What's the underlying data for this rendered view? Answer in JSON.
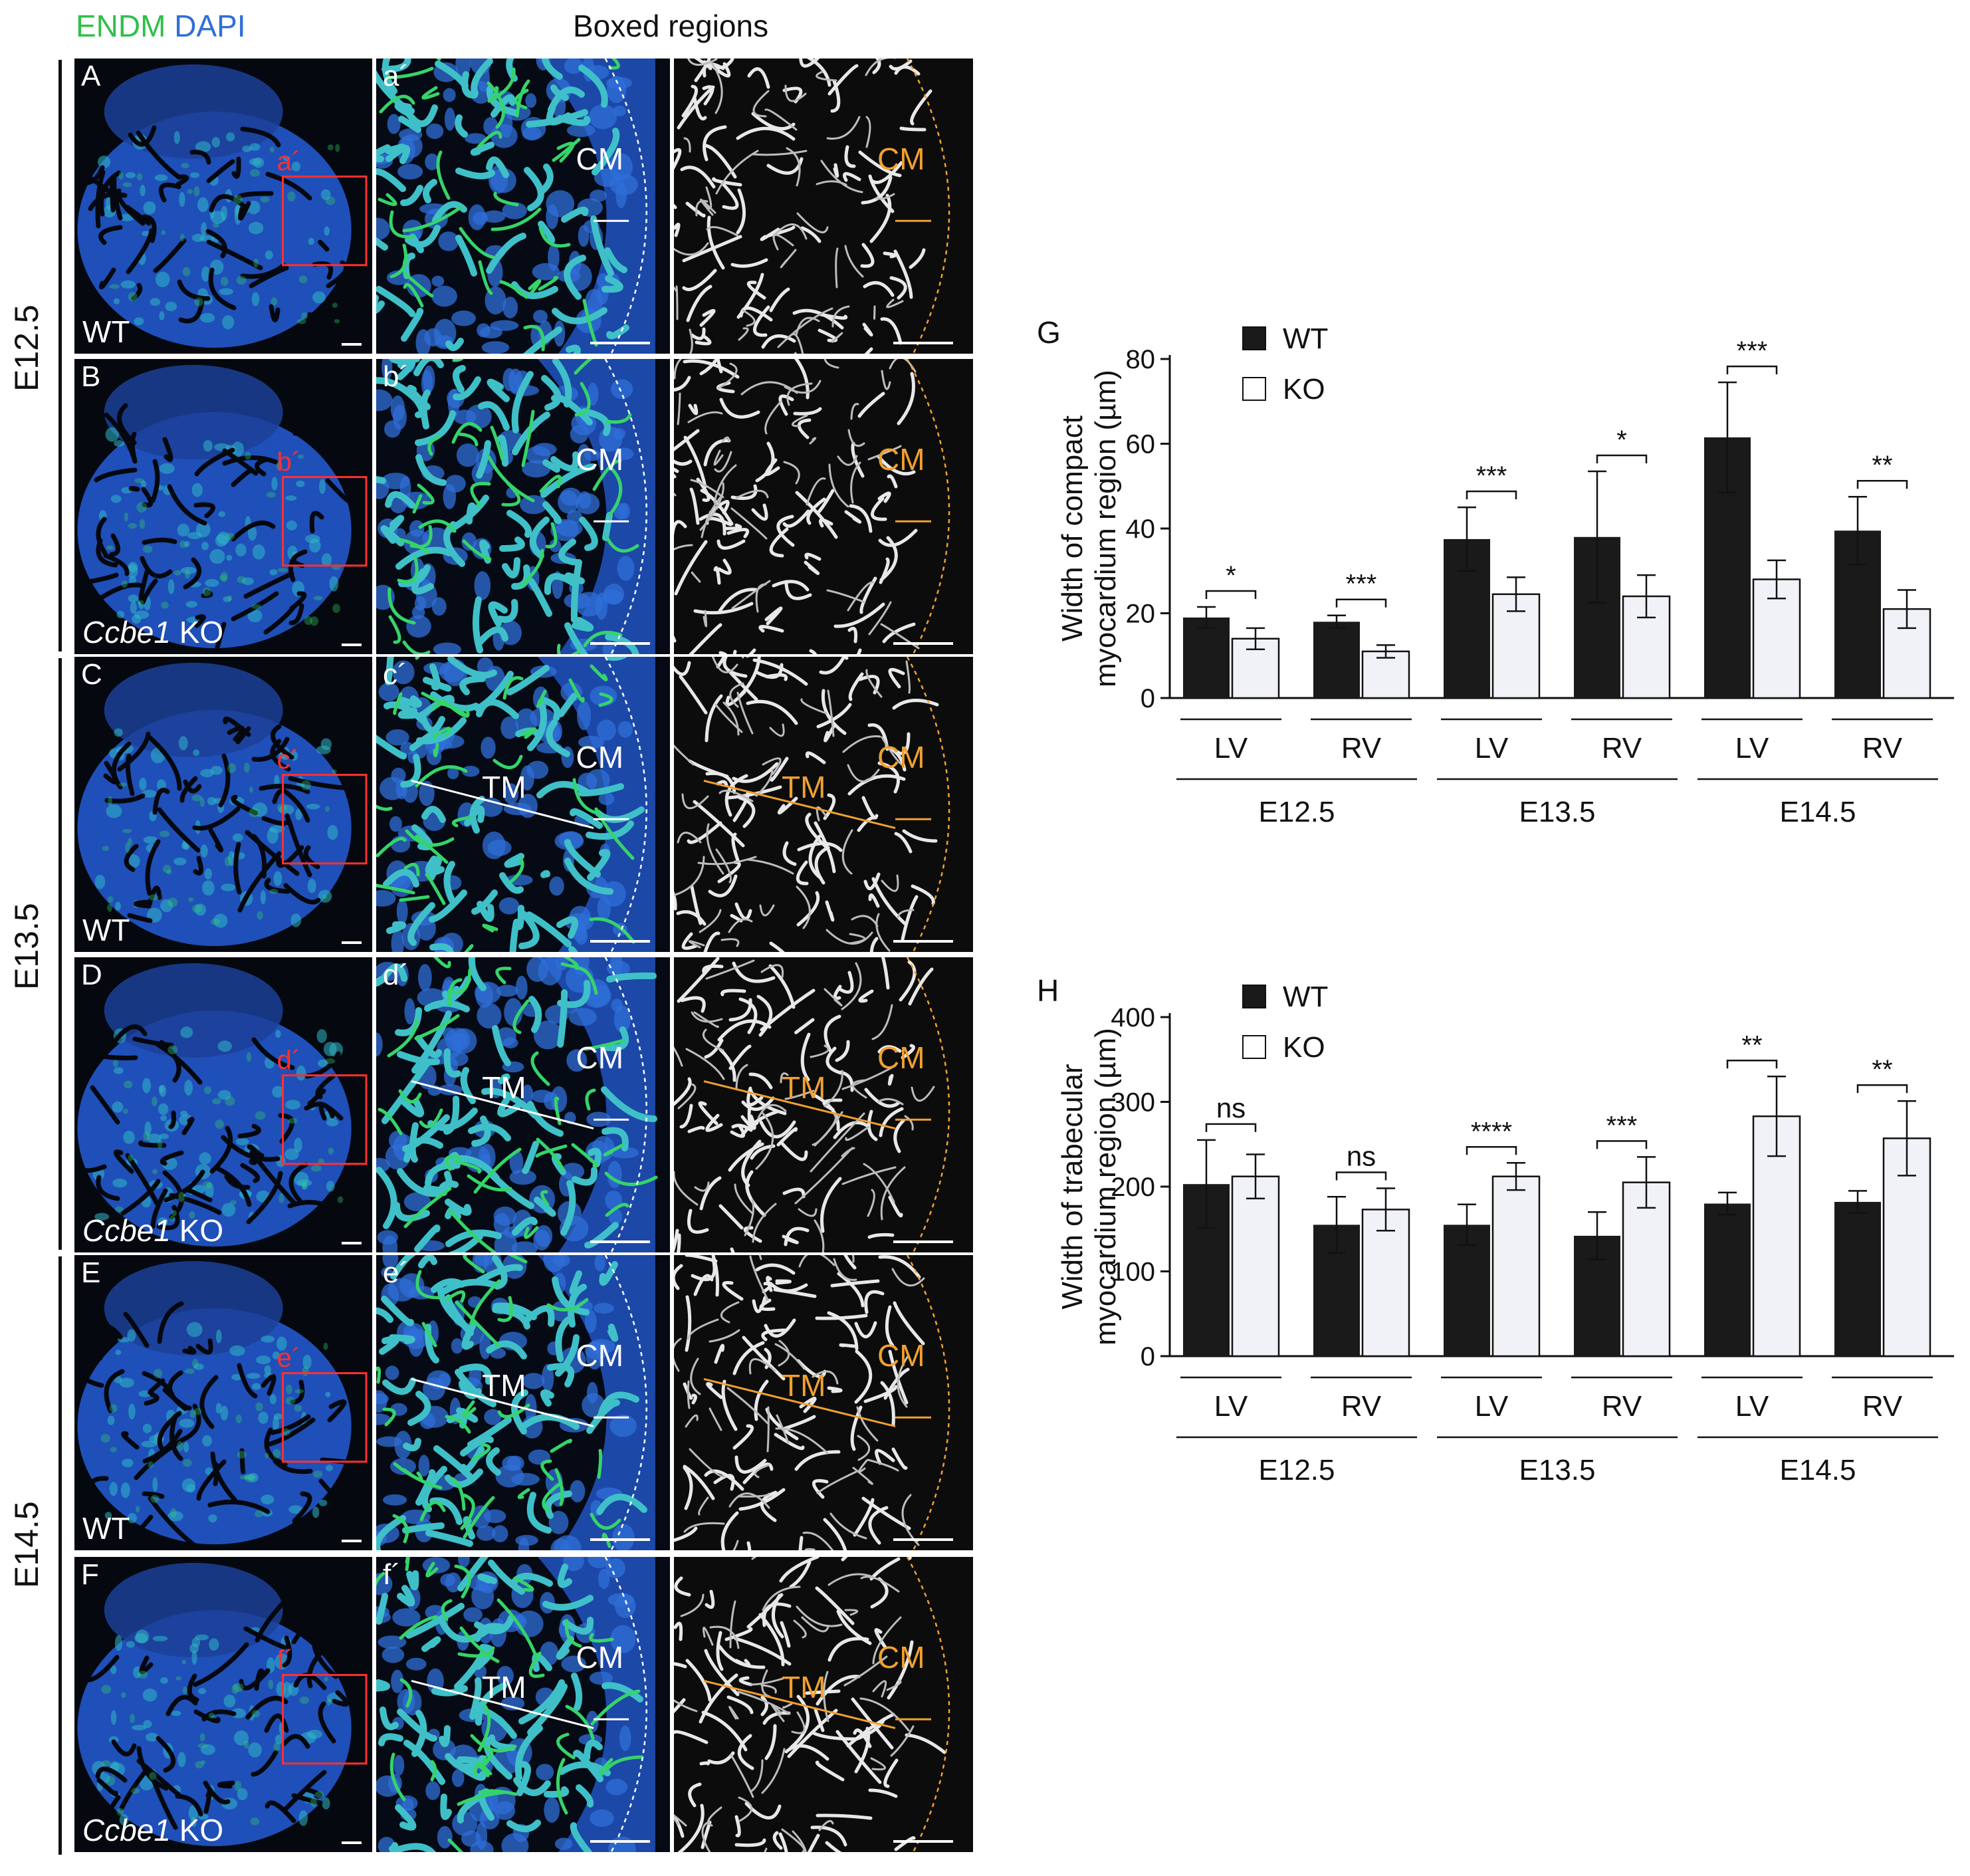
{
  "header": {
    "stain_endm": "ENDM",
    "stain_dapi": "DAPI",
    "boxed_title": "Boxed regions"
  },
  "colors": {
    "endm": "#2fc04a",
    "dapi": "#2f6fd8",
    "orange": "#f0a030",
    "red": "#ff3030",
    "wt_bar": "#1a1a1a",
    "ko_bar": "#f1f2f8"
  },
  "stages": [
    "E12.5",
    "E13.5",
    "E14.5"
  ],
  "rows": [
    {
      "label": "A",
      "sub": "a´",
      "box": "a´",
      "genotype": "WT",
      "italic": "",
      "cm": "CM",
      "tm": ""
    },
    {
      "label": "B",
      "sub": "b´",
      "box": "b´",
      "genotype": "KO",
      "italic": "Ccbe1",
      "cm": "CM",
      "tm": ""
    },
    {
      "label": "C",
      "sub": "c´",
      "box": "c´",
      "genotype": "WT",
      "italic": "",
      "cm": "CM",
      "tm": "TM"
    },
    {
      "label": "D",
      "sub": "d´",
      "box": "d´",
      "genotype": "KO",
      "italic": "Ccbe1",
      "cm": "CM",
      "tm": "TM"
    },
    {
      "label": "E",
      "sub": "e´",
      "box": "e´",
      "genotype": "WT",
      "italic": "",
      "cm": "CM",
      "tm": "TM"
    },
    {
      "label": "F",
      "sub": "f´",
      "box": "f´",
      "genotype": "KO",
      "italic": "Ccbe1",
      "cm": "CM",
      "tm": "TM"
    }
  ],
  "chart_data": [
    {
      "panel": "G",
      "type": "bar",
      "ylabel": [
        "Width of compact",
        "myocardium region (µm)"
      ],
      "ylim": [
        0,
        80
      ],
      "yticks": [
        0,
        20,
        40,
        60,
        80
      ],
      "legend": [
        "WT",
        "KO"
      ],
      "categories": [
        "LV",
        "RV",
        "LV",
        "RV",
        "LV",
        "RV"
      ],
      "groups": [
        "E12.5",
        "E13.5",
        "E14.5"
      ],
      "series": [
        {
          "name": "WT",
          "values": [
            19,
            18,
            37.5,
            38,
            61.5,
            39.5
          ],
          "errors": [
            2.5,
            1.5,
            7.5,
            15.5,
            13,
            8
          ]
        },
        {
          "name": "KO",
          "values": [
            14,
            11,
            24.5,
            24,
            28,
            21
          ],
          "errors": [
            2.5,
            1.5,
            4,
            5,
            4.5,
            4.5
          ]
        }
      ],
      "significance": [
        "*",
        "***",
        "***",
        "*",
        "***",
        "**"
      ]
    },
    {
      "panel": "H",
      "type": "bar",
      "ylabel": [
        "Width of trabecular",
        "myocardium region (µm)"
      ],
      "ylim": [
        0,
        400
      ],
      "yticks": [
        0,
        100,
        200,
        300,
        400
      ],
      "legend": [
        "WT",
        "KO"
      ],
      "categories": [
        "LV",
        "RV",
        "LV",
        "RV",
        "LV",
        "RV"
      ],
      "groups": [
        "E12.5",
        "E13.5",
        "E14.5"
      ],
      "series": [
        {
          "name": "WT",
          "values": [
            203,
            155,
            155,
            142,
            180,
            182
          ],
          "errors": [
            52,
            33,
            24,
            28,
            13,
            13
          ]
        },
        {
          "name": "KO",
          "values": [
            212,
            173,
            212,
            205,
            283,
            257
          ],
          "errors": [
            26,
            25,
            16,
            30,
            47,
            44
          ]
        }
      ],
      "significance": [
        "ns",
        "ns",
        "****",
        "***",
        "**",
        "**"
      ]
    }
  ]
}
